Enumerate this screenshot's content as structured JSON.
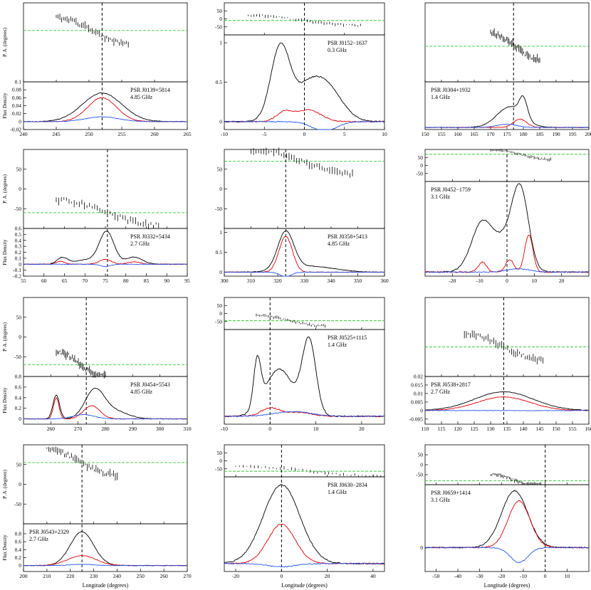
{
  "figure": {
    "xlabel": "Longitude (degrees)",
    "pa_ylabel": "P. A. (degrees)",
    "flux_ylabel": "Flux Density"
  },
  "chart_data": [
    {
      "type": "line",
      "name": "PSR J0139+5814",
      "freq": "4.85 GHz",
      "xlim": [
        240,
        265
      ],
      "xticks": [
        240,
        245,
        250,
        255,
        260,
        265
      ],
      "pa_ylim": [
        -100,
        100
      ],
      "pa_ticks": [],
      "pa_green": 30,
      "pa_start": 245,
      "pa_end": 256,
      "flux_ylim": [
        -0.02,
        0.1
      ],
      "flux_ticks": [
        -0.02,
        0,
        0.02,
        0.04,
        0.06,
        0.08,
        0.1
      ],
      "marker": 252,
      "peaks": {
        "I": [
          [
            252,
            0.072,
            3.0
          ]
        ],
        "L": [
          [
            252,
            0.06,
            2.2
          ]
        ],
        "V": [
          [
            252,
            0.012,
            2.5
          ]
        ]
      }
    },
    {
      "type": "line",
      "name": "PSR J0152−1637",
      "freq": "0.3 GHz",
      "xlim": [
        -10,
        10
      ],
      "xticks": [
        -10,
        -5,
        0,
        5,
        10
      ],
      "pa_ylim": [
        -100,
        100
      ],
      "pa_ticks": [
        50,
        0,
        -50
      ],
      "pa_green": -10,
      "pa_start": -7,
      "pa_end": 7,
      "flux_ylim": [
        -0.1,
        1.1
      ],
      "flux_ticks": [
        0,
        0.5,
        1
      ],
      "marker": 0,
      "peaks": {
        "I": [
          [
            -3,
            0.95,
            1.2
          ],
          [
            2.5,
            0.48,
            2.0
          ],
          [
            0,
            0.25,
            1.5
          ]
        ],
        "L": [
          [
            -2.5,
            0.12,
            1.0
          ],
          [
            0.5,
            0.15,
            1.5
          ]
        ],
        "V": [
          [
            2.5,
            -0.12,
            1.5
          ]
        ]
      }
    },
    {
      "type": "line",
      "name": "PSR J0304+1932",
      "freq": "1.4 GHz",
      "xlim": [
        150,
        200
      ],
      "xticks": [
        150,
        155,
        160,
        165,
        170,
        175,
        180,
        185,
        190,
        195,
        200
      ],
      "pa_ylim": [
        -100,
        100
      ],
      "pa_ticks": [],
      "pa_green": -10,
      "pa_start": 170,
      "pa_end": 185,
      "flux_ylim": [
        -0.05,
        1.1
      ],
      "flux_ticks": [],
      "marker": 177,
      "peaks": {
        "I": [
          [
            176,
            0.5,
            4.0
          ],
          [
            180,
            0.45,
            1.2
          ]
        ],
        "L": [
          [
            179,
            0.2,
            2.0
          ]
        ],
        "V": [
          [
            175,
            0.08,
            3.0
          ]
        ]
      }
    },
    {
      "type": "line",
      "name": "PSR J0332+5434",
      "freq": "2.7 GHz",
      "xlim": [
        55,
        95
      ],
      "xticks": [
        55,
        60,
        65,
        70,
        75,
        80,
        85,
        90,
        95
      ],
      "pa_ylim": [
        -100,
        100
      ],
      "pa_ticks": [
        50,
        0,
        -50
      ],
      "pa_green": -60,
      "pa_start": 63,
      "pa_end": 88,
      "flux_ylim": [
        -0.2,
        0.6
      ],
      "flux_ticks": [
        -0.2,
        -0.1,
        0,
        0.1,
        0.2,
        0.3,
        0.4,
        0.5,
        0.6
      ],
      "marker": 75.5,
      "peaks": {
        "I": [
          [
            64.5,
            0.11,
            1.3
          ],
          [
            70,
            0.07,
            2.5
          ],
          [
            75.3,
            0.55,
            1.8
          ],
          [
            82,
            0.12,
            2.0
          ]
        ],
        "L": [
          [
            64,
            0.05,
            1.0
          ],
          [
            75,
            0.08,
            1.5
          ],
          [
            82,
            0.04,
            1.5
          ]
        ],
        "V": [
          [
            75,
            -0.04,
            1.2
          ]
        ]
      }
    },
    {
      "type": "line",
      "name": "PSR J0358+5413",
      "freq": "4.85 GHz",
      "xlim": [
        300,
        360
      ],
      "xticks": [
        300,
        310,
        320,
        330,
        340,
        350,
        360
      ],
      "pa_ylim": [
        -100,
        100
      ],
      "pa_ticks": [
        50,
        0,
        -50
      ],
      "pa_green": 70,
      "pa_start": 310,
      "pa_end": 348,
      "flux_ylim": [
        -0.1,
        1.1
      ],
      "flux_ticks": [
        0,
        0.5,
        1
      ],
      "marker": 323,
      "peaks": {
        "I": [
          [
            323,
            0.95,
            3.0
          ],
          [
            332,
            0.15,
            9.0
          ]
        ],
        "L": [
          [
            323,
            0.9,
            2.5
          ]
        ],
        "V": [
          [
            323,
            -0.12,
            2.0
          ]
        ]
      }
    },
    {
      "type": "line",
      "name": "PSR J0452−1759",
      "freq": "3.1 GHz",
      "xlim": [
        -30,
        30
      ],
      "xticks": [
        -20,
        -10,
        0,
        10,
        20
      ],
      "pa_ylim": [
        -100,
        100
      ],
      "pa_ticks": [
        50,
        0,
        -50
      ],
      "pa_green": 70,
      "pa_start": -6,
      "pa_end": 16,
      "flux_ylim": [
        -0.05,
        1.1
      ],
      "flux_ticks": [],
      "marker": 0,
      "peaks": {
        "I": [
          [
            -9,
            0.6,
            4.0
          ],
          [
            0,
            0.35,
            4.0
          ],
          [
            5,
            0.9,
            3.0
          ]
        ],
        "L": [
          [
            -9,
            0.12,
            1.5
          ],
          [
            1,
            0.15,
            1.5
          ],
          [
            8,
            0.45,
            1.5
          ]
        ],
        "V": [
          [
            4,
            0.04,
            4.0
          ]
        ]
      }
    },
    {
      "type": "line",
      "name": "PSR J0454+5543",
      "freq": "4.85 GHz",
      "xlim": [
        250,
        310
      ],
      "xticks": [
        260,
        270,
        280,
        290,
        300,
        310
      ],
      "pa_ylim": [
        -100,
        100
      ],
      "pa_ticks": [
        50,
        0,
        -50
      ],
      "pa_green": -70,
      "pa_start": 262,
      "pa_end": 280,
      "flux_ylim": [
        -0.1,
        0.8
      ],
      "flux_ticks": [
        0,
        0.2,
        0.4,
        0.6,
        0.8
      ],
      "marker": 273,
      "peaks": {
        "I": [
          [
            262,
            0.45,
            1.2
          ],
          [
            276,
            0.52,
            3.5
          ],
          [
            283,
            0.15,
            5.0
          ]
        ],
        "L": [
          [
            262,
            0.4,
            1.0
          ],
          [
            275,
            0.25,
            3.0
          ]
        ],
        "V": [
          [
            272,
            0.08,
            4.0
          ]
        ]
      }
    },
    {
      "type": "line",
      "name": "PSR J0525+1115",
      "freq": "1.4 GHz",
      "xlim": [
        -10,
        25
      ],
      "xticks": [
        -10,
        0,
        10,
        20
      ],
      "pa_ylim": [
        -100,
        100
      ],
      "pa_ticks": [
        50,
        0,
        -50
      ],
      "pa_green": -45,
      "pa_start": -3,
      "pa_end": 12,
      "flux_ylim": [
        -0.1,
        1.1
      ],
      "flux_ticks": [],
      "marker": 0,
      "peaks": {
        "I": [
          [
            -2.8,
            0.6,
            0.8
          ],
          [
            2,
            0.6,
            3.0
          ],
          [
            8.5,
            0.95,
            1.5
          ]
        ],
        "L": [
          [
            0,
            0.1,
            2.0
          ],
          [
            6,
            0.05,
            3.0
          ]
        ],
        "V": [
          [
            5,
            0.06,
            4.0
          ]
        ]
      }
    },
    {
      "type": "line",
      "name": "PSR J0538+2817",
      "freq": "2.7 GHz",
      "xlim": [
        110,
        160
      ],
      "xticks": [
        110,
        115,
        120,
        125,
        130,
        135,
        140,
        145,
        150,
        155,
        160
      ],
      "pa_ylim": [
        -100,
        100
      ],
      "pa_ticks": [],
      "pa_green": -25,
      "pa_start": 122,
      "pa_end": 146,
      "flux_ylim": [
        -0.008,
        0.02
      ],
      "flux_ticks": [
        -0.005,
        0,
        0.005,
        0.01,
        0.015,
        0.02
      ],
      "marker": 134,
      "peaks": {
        "I": [
          [
            134,
            0.011,
            9.0
          ]
        ],
        "L": [
          [
            134,
            0.008,
            8.0
          ]
        ],
        "V": [
          [
            134,
            0.0,
            8.0
          ]
        ]
      }
    },
    {
      "type": "line",
      "name": "PSR J0543+2329",
      "freq": "2.7 GHz",
      "xlim": [
        200,
        270
      ],
      "xticks": [
        200,
        210,
        220,
        230,
        240,
        250,
        260,
        270
      ],
      "pa_ylim": [
        -100,
        100
      ],
      "pa_ticks": [
        50,
        0,
        -50
      ],
      "pa_green": 55,
      "pa_start": 210,
      "pa_end": 240,
      "flux_ylim": [
        -0.15,
        1.05
      ],
      "flux_ticks": [
        0,
        0.2,
        0.4,
        0.6,
        0.8
      ],
      "marker": 225,
      "peaks": {
        "I": [
          [
            225,
            0.85,
            5.0
          ]
        ],
        "L": [
          [
            225,
            0.25,
            6.0
          ]
        ],
        "V": [
          [
            225,
            0.03,
            5.0
          ]
        ]
      }
    },
    {
      "type": "line",
      "name": "PSR J0630−2834",
      "freq": "1.4 GHz",
      "xlim": [
        -25,
        45
      ],
      "xticks": [
        -20,
        0,
        20,
        40
      ],
      "pa_ylim": [
        -100,
        100
      ],
      "pa_ticks": [
        50,
        0,
        -50
      ],
      "pa_green": -65,
      "pa_start": -20,
      "pa_end": 45,
      "flux_ylim": [
        -0.1,
        1.1
      ],
      "flux_ticks": [],
      "marker": 0,
      "peaks": {
        "I": [
          [
            0,
            1.0,
            8.0
          ]
        ],
        "L": [
          [
            0,
            0.5,
            6.0
          ]
        ],
        "V": [
          [
            0,
            -0.04,
            6.0
          ]
        ]
      }
    },
    {
      "type": "line",
      "name": "PSR J0659+1414",
      "freq": "3.1 GHz",
      "xlim": [
        -55,
        20
      ],
      "xticks": [
        -50,
        -40,
        -30,
        -20,
        -10,
        0,
        10
      ],
      "pa_ylim": [
        -100,
        100
      ],
      "pa_ticks": [
        50,
        0,
        -50
      ],
      "pa_green": -80,
      "pa_start": -25,
      "pa_end": -2,
      "flux_ylim": [
        -0.4,
        1.05
      ],
      "flux_ticks": [
        0
      ],
      "marker": 0,
      "peaks": {
        "I": [
          [
            -14,
            0.95,
            6.0
          ]
        ],
        "L": [
          [
            -12,
            0.78,
            5.0
          ]
        ],
        "V": [
          [
            -12,
            -0.25,
            4.0
          ]
        ]
      }
    }
  ]
}
